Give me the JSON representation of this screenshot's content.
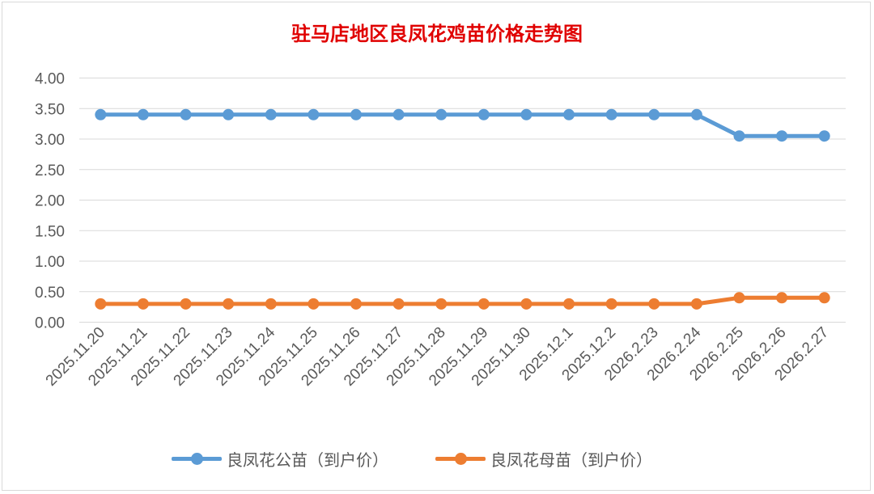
{
  "colors": {
    "series_1": "#5b9bd5",
    "series_2": "#ed7d31",
    "grid": "#d9d9d9",
    "title": "#e00000",
    "text": "#595959"
  },
  "chart_data": {
    "type": "line",
    "title": "驻马店地区良凤花鸡苗价格走势图",
    "xlabel": "",
    "ylabel": "",
    "ylim": [
      0,
      4
    ],
    "yticks": [
      "0.00",
      "0.50",
      "1.00",
      "1.50",
      "2.00",
      "2.50",
      "3.00",
      "3.50",
      "4.00"
    ],
    "grid": true,
    "legend_position": "bottom",
    "categories": [
      "2025.11.20",
      "2025.11.21",
      "2025.11.22",
      "2025.11.23",
      "2025.11.24",
      "2025.11.25",
      "2025.11.26",
      "2025.11.27",
      "2025.11.28",
      "2025.11.29",
      "2025.11.30",
      "2025.12.1",
      "2025.12.2",
      "2026.2.23",
      "2026.2.24",
      "2026.2.25",
      "2026.2.26",
      "2026.2.27"
    ],
    "series": [
      {
        "name": "良凤花公苗（到户价）",
        "color": "#5b9bd5",
        "values": [
          3.4,
          3.4,
          3.4,
          3.4,
          3.4,
          3.4,
          3.4,
          3.4,
          3.4,
          3.4,
          3.4,
          3.4,
          3.4,
          3.4,
          3.4,
          3.05,
          3.05,
          3.05
        ]
      },
      {
        "name": "良凤花母苗（到户价）",
        "color": "#ed7d31",
        "values": [
          0.3,
          0.3,
          0.3,
          0.3,
          0.3,
          0.3,
          0.3,
          0.3,
          0.3,
          0.3,
          0.3,
          0.3,
          0.3,
          0.3,
          0.3,
          0.4,
          0.4,
          0.4
        ]
      }
    ]
  }
}
